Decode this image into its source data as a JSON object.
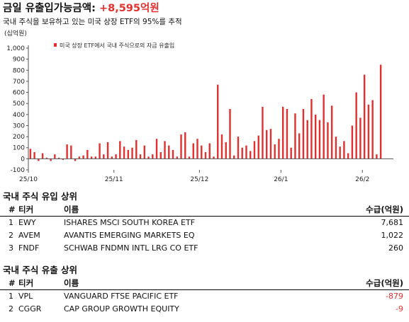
{
  "header": {
    "title_prefix": "금일 유출입가능금액: ",
    "title_value": "+8,595억원",
    "subtitle": "국내 주식을 보유하고 있는 미국 상장 ETF의 95%를 추적"
  },
  "chart_data": {
    "type": "bar",
    "unit_label": "(십억원)",
    "legend": "미국 상장 ETF에서 국내 주식으로의 자금 유출입",
    "color": "#e03030",
    "ylim": [
      -100,
      1000
    ],
    "yticks": [
      -100,
      0,
      100,
      200,
      300,
      400,
      500,
      600,
      700,
      800,
      900,
      1000
    ],
    "ytick_labels": [
      "-100",
      "0",
      "100",
      "200",
      "300",
      "400",
      "500",
      "600",
      "700",
      "800",
      "900",
      "1,000"
    ],
    "xtick_labels": [
      "25/10",
      "25/11",
      "25/12",
      "26/1",
      "26/2"
    ],
    "xtick_index": [
      0,
      21,
      42,
      62,
      82
    ],
    "grid": false,
    "legend_position": "top-left",
    "values": [
      90,
      60,
      -20,
      50,
      10,
      -20,
      40,
      10,
      -10,
      130,
      120,
      -20,
      20,
      30,
      80,
      20,
      20,
      140,
      40,
      150,
      20,
      40,
      160,
      110,
      80,
      100,
      170,
      40,
      120,
      20,
      40,
      180,
      60,
      160,
      120,
      80,
      20,
      220,
      240,
      20,
      140,
      180,
      120,
      60,
      140,
      20,
      670,
      220,
      150,
      450,
      30,
      200,
      100,
      120,
      70,
      160,
      210,
      470,
      260,
      270,
      130,
      180,
      470,
      450,
      100,
      410,
      230,
      450,
      350,
      540,
      400,
      350,
      580,
      330,
      480,
      200,
      110,
      160,
      50,
      300,
      600,
      370,
      760,
      490,
      530,
      40,
      850
    ]
  },
  "inflow": {
    "title": "국내 주식 유입 상위",
    "headers": {
      "rank": "#",
      "ticker": "티커",
      "name": "이름",
      "value": "수급(억원)"
    },
    "rows": [
      {
        "rank": "1",
        "ticker": "EWY",
        "name": "ISHARES MSCI SOUTH KOREA ETF",
        "value": "7,681"
      },
      {
        "rank": "2",
        "ticker": "AVEM",
        "name": "AVANTIS EMERGING MARKETS EQ",
        "value": "1,022"
      },
      {
        "rank": "3",
        "ticker": "FNDF",
        "name": "SCHWAB FNDMN INTL LRG CO ETF",
        "value": "260"
      }
    ]
  },
  "outflow": {
    "title": "국내 주식 유출 상위",
    "headers": {
      "rank": "#",
      "ticker": "티커",
      "name": "이름",
      "value": "수급(억원)"
    },
    "rows": [
      {
        "rank": "1",
        "ticker": "VPL",
        "name": "VANGUARD FTSE PACIFIC ETF",
        "value": "-879"
      },
      {
        "rank": "2",
        "ticker": "CGGR",
        "name": "CAP GROUP GROWTH EQUITY",
        "value": "-9"
      }
    ]
  }
}
